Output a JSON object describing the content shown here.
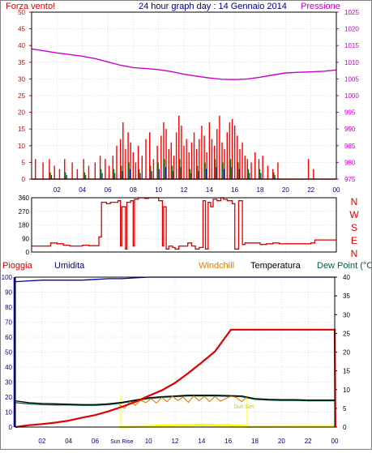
{
  "colors": {
    "wind": "#e00000",
    "windGust": "#ff0000",
    "windAvg": "#008000",
    "windBlue": "#0000c0",
    "pressure": "#cc00cc",
    "direction": "#e00000",
    "rain": "#e00000",
    "humidity": "#0000a0",
    "windchill": "#e08000",
    "temperature": "#000000",
    "dewpoint": "#006040",
    "sun": "#ffff00",
    "grid": "#c0c0c0",
    "frame": "#000000"
  },
  "chart_data": [
    {
      "type": "line",
      "title": "24 hour graph day : 14 Gennaio 2014",
      "left_label": "Forza vento!",
      "right_label": "Pressione",
      "y_left_ticks": [
        "0",
        "5",
        "10",
        "15",
        "20",
        "25",
        "30",
        "35",
        "40",
        "45",
        "50"
      ],
      "y_left_range": [
        0,
        50
      ],
      "y_right_ticks": [
        "975",
        "980",
        "985",
        "990",
        "995",
        "1000",
        "1005",
        "1010",
        "1015",
        "1020",
        "1025"
      ],
      "y_right_range": [
        975,
        1025
      ],
      "x_ticks": [
        "02",
        "04",
        "06",
        "08",
        "10",
        "12",
        "14",
        "16",
        "18",
        "20",
        "22",
        "00"
      ],
      "series": [
        {
          "key": "pressure",
          "axis": "right",
          "hours": [
            0,
            1,
            2,
            3,
            4,
            5,
            6,
            7,
            8,
            9,
            10,
            11,
            12,
            13,
            14,
            15,
            16,
            17,
            18,
            19,
            20,
            21,
            22,
            23,
            24
          ],
          "values": [
            1014,
            1013.4,
            1012.8,
            1012.3,
            1011.8,
            1011.1,
            1010.1,
            1009.1,
            1008.4,
            1008.1,
            1007.8,
            1007.2,
            1006.4,
            1005.8,
            1005.3,
            1004.9,
            1004.8,
            1005.0,
            1005.5,
            1006.2,
            1006.8,
            1007.0,
            1007.1,
            1007.3,
            1007.7
          ]
        },
        {
          "key": "wind_gust",
          "axis": "left",
          "hours": [
            0.3,
            0.9,
            1.4,
            1.8,
            2.2,
            2.6,
            3.2,
            3.6,
            4.1,
            4.5,
            5.0,
            5.4,
            5.8,
            6.1,
            6.4,
            6.7,
            7.0,
            7.2,
            7.4,
            7.6,
            7.8,
            8.0,
            8.2,
            8.4,
            8.7,
            9.0,
            9.3,
            9.6,
            9.9,
            10.2,
            10.4,
            10.6,
            10.8,
            11.0,
            11.2,
            11.4,
            11.6,
            11.8,
            12.0,
            12.2,
            12.4,
            12.6,
            12.8,
            13.0,
            13.2,
            13.4,
            13.6,
            13.8,
            14.0,
            14.2,
            14.4,
            14.6,
            14.8,
            15.0,
            15.2,
            15.4,
            15.6,
            15.8,
            16.0,
            16.2,
            16.4,
            16.6,
            16.8,
            17.0,
            17.3,
            17.6,
            17.9,
            18.2,
            18.6,
            19.0,
            19.4,
            21.8,
            22.2
          ],
          "values": [
            6,
            5,
            6,
            4,
            3,
            6,
            5,
            3,
            6,
            4,
            5,
            7,
            6,
            4,
            7,
            10,
            12,
            17,
            9,
            14,
            11,
            8,
            5,
            10,
            7,
            12,
            14,
            6,
            10,
            13,
            17,
            15,
            9,
            11,
            7,
            14,
            19,
            16,
            10,
            12,
            8,
            11,
            14,
            9,
            12,
            16,
            13,
            8,
            17,
            12,
            10,
            15,
            19,
            11,
            9,
            14,
            17,
            18,
            16,
            13,
            9,
            11,
            7,
            6,
            5,
            8,
            6,
            7,
            4,
            3,
            5,
            6,
            3
          ]
        },
        {
          "key": "wind_avg",
          "axis": "left",
          "hours": [
            1.4,
            2.6,
            4.1,
            5.4,
            6.4,
            7.0,
            7.6,
            8.4,
            9.3,
            9.9,
            10.4,
            11.0,
            11.6,
            12.4,
            13.0,
            13.6,
            14.4,
            15.0,
            15.6,
            16.2,
            17.0,
            17.9,
            19.0
          ],
          "values": [
            2,
            2,
            2,
            3,
            3,
            4,
            5,
            3,
            4,
            5,
            6,
            4,
            6,
            3,
            4,
            5,
            6,
            5,
            6,
            5,
            3,
            3,
            2
          ]
        }
      ]
    },
    {
      "type": "line",
      "left_ticks": [
        "0",
        "90",
        "180",
        "270",
        "360"
      ],
      "y_range": [
        0,
        360
      ],
      "right_labels": [
        "N",
        "W",
        "S",
        "E",
        "N"
      ],
      "series": [
        {
          "key": "direction",
          "hours": [
            0,
            1,
            1.5,
            2,
            2.5,
            3,
            3.5,
            4,
            4.5,
            5,
            5.3,
            5.5,
            5.7,
            5.9,
            6.2,
            6.5,
            6.8,
            7.0,
            7.1,
            7.4,
            7.5,
            7.8,
            8.0,
            8.1,
            8.4,
            8.6,
            8.9,
            9.2,
            9.6,
            10.0,
            10.3,
            10.4,
            10.6,
            10.8,
            11.1,
            11.3,
            11.6,
            12.0,
            12.3,
            12.6,
            12.9,
            13.2,
            13.5,
            13.7,
            13.9,
            14.1,
            14.3,
            14.6,
            14.9,
            15.1,
            15.4,
            15.8,
            16.0,
            16.3,
            16.6,
            16.8,
            17.0,
            17.5,
            18.0,
            18.5,
            19.0,
            19.5,
            20.0,
            21.0,
            22.0,
            22.3,
            23.0,
            24.0
          ],
          "values": [
            40,
            40,
            60,
            55,
            45,
            40,
            40,
            45,
            42,
            42,
            100,
            330,
            330,
            320,
            330,
            330,
            340,
            40,
            300,
            20,
            330,
            340,
            40,
            350,
            360,
            360,
            355,
            360,
            360,
            340,
            40,
            300,
            20,
            40,
            30,
            20,
            40,
            40,
            60,
            40,
            20,
            30,
            340,
            20,
            330,
            300,
            350,
            340,
            360,
            350,
            340,
            320,
            20,
            340,
            50,
            60,
            60,
            60,
            50,
            55,
            60,
            55,
            55,
            55,
            60,
            80,
            80,
            80
          ]
        }
      ]
    },
    {
      "type": "line",
      "left_label": "Pioggia",
      "legend": [
        "Umidita",
        "Windchill",
        "Temperatura",
        "Dew Point (°C"
      ],
      "y_left_ticks": [
        "0",
        "10",
        "20",
        "30",
        "40",
        "50",
        "60",
        "70",
        "80",
        "90",
        "100"
      ],
      "y_left_range": [
        0,
        100
      ],
      "y_right_ticks": [
        "0",
        "5",
        "10",
        "15",
        "20",
        "25",
        "30",
        "35",
        "40"
      ],
      "y_right_range": [
        0,
        40
      ],
      "x_ticks": [
        "02",
        "04",
        "06",
        "Sun Rise",
        "10",
        "12",
        "14",
        "16",
        "18",
        "20",
        "22",
        "00"
      ],
      "sun_labels": [
        "Sun Rise",
        "Sun Set"
      ],
      "series": [
        {
          "key": "humidity",
          "axis": "left",
          "hours": [
            0,
            1,
            2,
            3,
            4,
            5,
            6,
            7,
            8,
            9,
            10,
            11,
            12,
            13,
            14,
            15,
            16,
            17,
            18,
            19,
            20,
            21,
            22,
            23,
            24
          ],
          "values": [
            97,
            97.5,
            98,
            98,
            98,
            98,
            98.5,
            99,
            99,
            99.5,
            100,
            100,
            100,
            100,
            100,
            100,
            100,
            100,
            100,
            100,
            100,
            100,
            100,
            100,
            100
          ]
        },
        {
          "key": "temperature",
          "axis": "right",
          "hours": [
            0,
            1,
            2,
            3,
            4,
            5,
            6,
            7,
            8,
            9,
            10,
            11,
            12,
            13,
            14,
            15,
            16,
            17,
            18,
            19,
            20,
            21,
            22,
            23,
            24
          ],
          "values": [
            7,
            6.5,
            6.3,
            6.2,
            6.1,
            6.0,
            6.0,
            6.2,
            6.6,
            7.2,
            7.8,
            8.1,
            8.3,
            8.5,
            8.5,
            8.5,
            8.4,
            8.3,
            7.6,
            7.4,
            7.3,
            7.3,
            7.2,
            7.2,
            7.2
          ]
        },
        {
          "key": "dewpoint",
          "axis": "right",
          "hours": [
            0,
            1,
            2,
            3,
            4,
            5,
            6,
            7,
            8,
            9,
            10,
            11,
            12,
            13,
            14,
            15,
            16,
            17,
            18,
            19,
            20,
            21,
            22,
            23,
            24
          ],
          "values": [
            6.5,
            6.2,
            6.0,
            5.9,
            5.9,
            5.8,
            5.8,
            6.0,
            6.4,
            7.0,
            7.6,
            7.9,
            8.1,
            8.3,
            8.3,
            8.3,
            8.2,
            8.1,
            7.4,
            7.2,
            7.1,
            7.1,
            7.0,
            7.0,
            7.0
          ]
        },
        {
          "key": "windchill",
          "axis": "right",
          "hours": [
            7.8,
            8.2,
            8.6,
            9.0,
            9.4,
            9.8,
            10.2,
            10.6,
            11.0,
            11.4,
            11.8,
            12.2,
            12.6,
            13.0,
            13.4,
            13.8,
            14.2,
            14.6,
            15.0,
            15.4,
            15.8,
            16.2,
            16.6,
            17.0,
            17.4
          ],
          "values": [
            6.0,
            5.0,
            6.8,
            5.8,
            7.2,
            6.5,
            7.6,
            6.4,
            7.9,
            6.8,
            8.2,
            7.1,
            8.0,
            6.6,
            8.3,
            7.0,
            8.2,
            6.8,
            8.2,
            6.9,
            7.6,
            8.2,
            7.9,
            6.8,
            8.0
          ]
        },
        {
          "key": "rain",
          "axis": "right",
          "hours": [
            0,
            1,
            2,
            3,
            4,
            5,
            6,
            7,
            8,
            9,
            10,
            11,
            12,
            13,
            14,
            15,
            16.2,
            24,
            24.05
          ],
          "values": [
            0,
            0.5,
            0.8,
            1.2,
            1.7,
            2.5,
            3.2,
            4.2,
            5.4,
            6.7,
            8.3,
            9.8,
            11.8,
            14.4,
            17.2,
            20.2,
            26,
            26,
            0
          ]
        },
        {
          "key": "sun",
          "axis": "right",
          "hours": [
            7.8,
            9,
            10,
            11,
            12,
            13,
            14,
            15,
            16,
            17,
            17.5,
            18,
            24
          ],
          "values": [
            0,
            0.1,
            0.2,
            0.4,
            0.5,
            0.5,
            0.6,
            0.5,
            0.5,
            0.3,
            0.1,
            0.1,
            0.2
          ]
        }
      ]
    }
  ]
}
